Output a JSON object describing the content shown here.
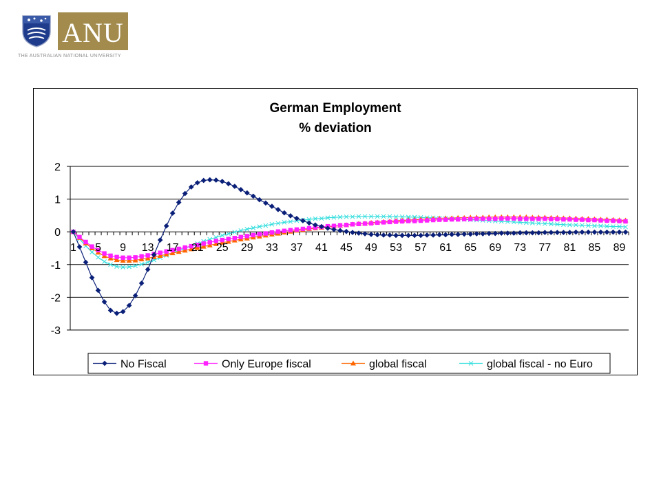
{
  "logo": {
    "text": "ANU",
    "subtitle": "THE AUSTRALIAN NATIONAL UNIVERSITY",
    "box_color": "#a28b4c",
    "crest_color": "#1f3c8c"
  },
  "chart_data": {
    "type": "line",
    "title": "German Employment",
    "subtitle": "% deviation",
    "xlabel": "",
    "ylabel": "",
    "x_count": 90,
    "x_tick_labels": [
      "1",
      "5",
      "9",
      "13",
      "17",
      "21",
      "25",
      "29",
      "33",
      "37",
      "41",
      "45",
      "49",
      "53",
      "57",
      "61",
      "65",
      "69",
      "73",
      "77",
      "81",
      "85",
      "89"
    ],
    "ylim": [
      -3,
      2
    ],
    "y_ticks": [
      2,
      1,
      0,
      -1,
      -2,
      -3
    ],
    "grid": "horizontal",
    "legend_position": "bottom",
    "series": [
      {
        "name": "No Fiscal",
        "color": "#0a1f78",
        "marker": "diamond",
        "values": [
          0,
          -0.46,
          -0.93,
          -1.4,
          -1.79,
          -2.14,
          -2.4,
          -2.49,
          -2.44,
          -2.25,
          -1.95,
          -1.57,
          -1.15,
          -0.7,
          -0.25,
          0.18,
          0.57,
          0.9,
          1.17,
          1.37,
          1.5,
          1.57,
          1.59,
          1.58,
          1.54,
          1.47,
          1.39,
          1.29,
          1.19,
          1.09,
          0.98,
          0.88,
          0.78,
          0.68,
          0.58,
          0.49,
          0.41,
          0.34,
          0.27,
          0.21,
          0.16,
          0.11,
          0.07,
          0.04,
          0.01,
          -0.02,
          -0.04,
          -0.06,
          -0.08,
          -0.09,
          -0.1,
          -0.1,
          -0.11,
          -0.11,
          -0.11,
          -0.11,
          -0.11,
          -0.1,
          -0.1,
          -0.09,
          -0.09,
          -0.08,
          -0.08,
          -0.07,
          -0.07,
          -0.06,
          -0.06,
          -0.05,
          -0.05,
          -0.04,
          -0.04,
          -0.04,
          -0.03,
          -0.03,
          -0.03,
          -0.03,
          -0.02,
          -0.02,
          -0.02,
          -0.02,
          -0.02,
          -0.01,
          -0.01,
          -0.01,
          -0.01,
          -0.01,
          -0.01,
          -0.01,
          -0.01,
          -0.01
        ]
      },
      {
        "name": "Only Europe fiscal",
        "color": "#ff22ff",
        "marker": "square",
        "values": [
          0,
          -0.16,
          -0.31,
          -0.45,
          -0.56,
          -0.66,
          -0.73,
          -0.77,
          -0.79,
          -0.79,
          -0.78,
          -0.75,
          -0.72,
          -0.68,
          -0.64,
          -0.6,
          -0.56,
          -0.52,
          -0.48,
          -0.44,
          -0.4,
          -0.36,
          -0.32,
          -0.28,
          -0.25,
          -0.22,
          -0.19,
          -0.16,
          -0.13,
          -0.1,
          -0.07,
          -0.05,
          -0.02,
          0.01,
          0.03,
          0.05,
          0.07,
          0.09,
          0.11,
          0.13,
          0.15,
          0.17,
          0.18,
          0.2,
          0.21,
          0.23,
          0.24,
          0.25,
          0.26,
          0.28,
          0.29,
          0.3,
          0.31,
          0.32,
          0.33,
          0.33,
          0.34,
          0.35,
          0.36,
          0.37,
          0.37,
          0.38,
          0.38,
          0.39,
          0.39,
          0.4,
          0.4,
          0.4,
          0.4,
          0.41,
          0.41,
          0.41,
          0.4,
          0.4,
          0.4,
          0.4,
          0.4,
          0.39,
          0.39,
          0.38,
          0.38,
          0.37,
          0.37,
          0.36,
          0.36,
          0.35,
          0.34,
          0.34,
          0.33,
          0.32
        ]
      },
      {
        "name": "global fiscal",
        "color": "#ff6600",
        "marker": "triangle",
        "values": [
          0,
          -0.18,
          -0.35,
          -0.5,
          -0.63,
          -0.74,
          -0.81,
          -0.86,
          -0.88,
          -0.88,
          -0.87,
          -0.84,
          -0.81,
          -0.77,
          -0.73,
          -0.69,
          -0.65,
          -0.61,
          -0.57,
          -0.53,
          -0.49,
          -0.45,
          -0.41,
          -0.37,
          -0.33,
          -0.3,
          -0.26,
          -0.23,
          -0.2,
          -0.17,
          -0.14,
          -0.11,
          -0.08,
          -0.05,
          -0.02,
          0.01,
          0.04,
          0.06,
          0.09,
          0.11,
          0.13,
          0.15,
          0.17,
          0.19,
          0.21,
          0.23,
          0.25,
          0.26,
          0.28,
          0.29,
          0.31,
          0.32,
          0.34,
          0.35,
          0.36,
          0.37,
          0.38,
          0.39,
          0.4,
          0.41,
          0.42,
          0.42,
          0.43,
          0.43,
          0.44,
          0.44,
          0.44,
          0.45,
          0.45,
          0.45,
          0.45,
          0.45,
          0.45,
          0.45,
          0.44,
          0.44,
          0.44,
          0.43,
          0.43,
          0.42,
          0.42,
          0.41,
          0.4,
          0.4,
          0.39,
          0.38,
          0.38,
          0.37,
          0.36,
          0.35
        ]
      },
      {
        "name": "global fiscal - no Euro",
        "color": "#33dddd",
        "marker": "x",
        "values": [
          0,
          -0.22,
          -0.43,
          -0.62,
          -0.78,
          -0.91,
          -1.0,
          -1.06,
          -1.08,
          -1.07,
          -1.04,
          -0.99,
          -0.93,
          -0.86,
          -0.79,
          -0.72,
          -0.64,
          -0.57,
          -0.5,
          -0.43,
          -0.36,
          -0.29,
          -0.23,
          -0.17,
          -0.11,
          -0.06,
          -0.01,
          0.04,
          0.08,
          0.12,
          0.16,
          0.19,
          0.23,
          0.26,
          0.29,
          0.31,
          0.34,
          0.36,
          0.38,
          0.4,
          0.41,
          0.43,
          0.44,
          0.45,
          0.46,
          0.46,
          0.47,
          0.47,
          0.47,
          0.47,
          0.47,
          0.47,
          0.46,
          0.46,
          0.45,
          0.45,
          0.44,
          0.43,
          0.43,
          0.42,
          0.41,
          0.4,
          0.39,
          0.38,
          0.37,
          0.36,
          0.35,
          0.34,
          0.33,
          0.32,
          0.31,
          0.3,
          0.29,
          0.28,
          0.27,
          0.26,
          0.25,
          0.24,
          0.23,
          0.22,
          0.21,
          0.21,
          0.2,
          0.19,
          0.18,
          0.18,
          0.17,
          0.16,
          0.16,
          0.15
        ]
      }
    ]
  }
}
